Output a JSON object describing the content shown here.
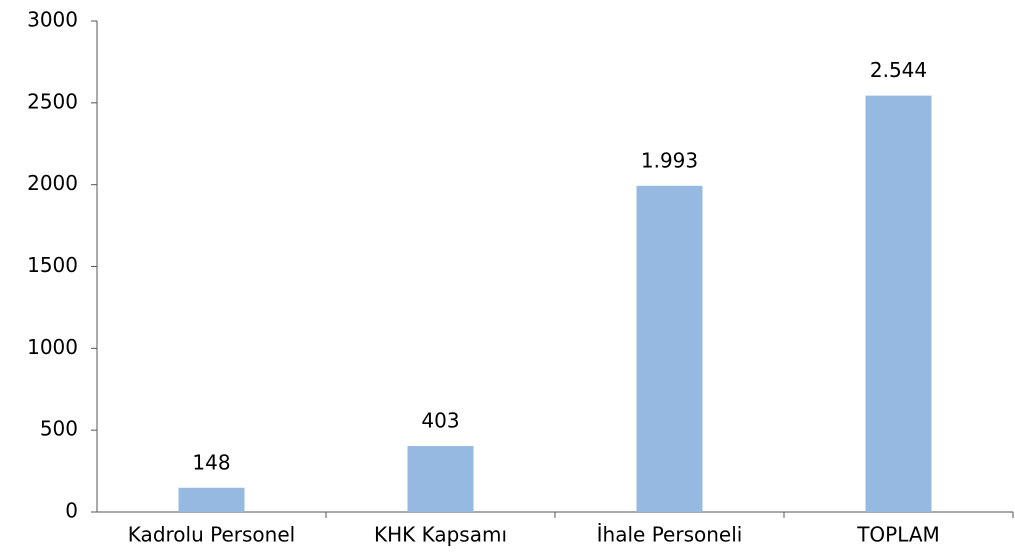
{
  "chart_data": {
    "type": "bar",
    "categories": [
      "Kadrolu Personel",
      "KHK Kapsamı",
      "İhale Personeli",
      "TOPLAM"
    ],
    "values": [
      148,
      403,
      1993,
      2544
    ],
    "value_labels": [
      "148",
      "403",
      "1.993",
      "2.544"
    ],
    "color": "#95b9e0",
    "ylim": [
      0,
      3000
    ],
    "yticks": [
      0,
      500,
      1000,
      1500,
      2000,
      2500,
      3000
    ],
    "grid": false
  }
}
